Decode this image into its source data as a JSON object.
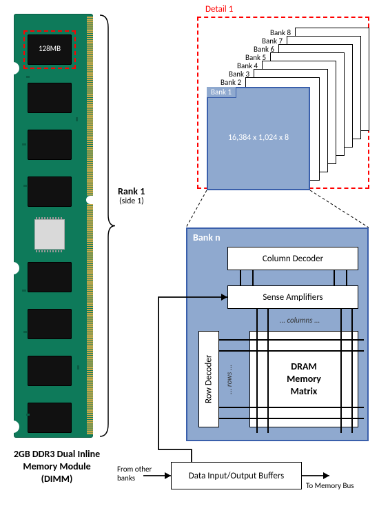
{
  "dimm": {
    "caption_line1": "2GB DDR3 Dual Inline",
    "caption_line2": "Memory Module",
    "caption_line3": "(DIMM)",
    "rank_label": "Rank 1",
    "rank_sub": "(side 1)",
    "chip_highlight_label": "128MB",
    "pcb_color": "#0e7a5a",
    "pcb_border": "#0a5d44",
    "chip_color": "#111111",
    "chip_rows": 8,
    "chip_cols": 2,
    "highlight_dash_color": "#ff0000",
    "contact_color": "#c9a94a",
    "ic_color": "#d9d9d9"
  },
  "detail1": {
    "title": "Detail 1",
    "border_color": "#ff0000",
    "banks": [
      "Bank 8",
      "Bank 7",
      "Bank 6",
      "Bank 5",
      "Bank 4",
      "Bank 3",
      "Bank 2",
      "Bank 1"
    ],
    "bank_fill": "#ffffff",
    "bank_border": "#000000",
    "front_fill": "#8fa9cf",
    "front_border": "#3a5fab",
    "front_text": "16,384 x 1,024 x 8",
    "front_text_color": "#ffffff",
    "bank_label_bg": "#ffffff",
    "label_font_size": 11
  },
  "bank_detail": {
    "title": "Bank n",
    "bg_fill": "#8fa9cf",
    "border_color": "#3a5fab",
    "title_color": "#ffffff",
    "col_decoder": "Column Decoder",
    "sense_amp": "Sense Amplifiers",
    "row_decoder": "Row Decoder",
    "cols_label": "... columns ...",
    "rows_label": "... rows ...",
    "matrix_line1": "DRAM",
    "matrix_line2": "Memory",
    "matrix_line3": "Matrix",
    "block_fill": "#ffffff",
    "block_border": "#000000",
    "buffer_label": "Data Input/Output Buffers",
    "from_banks": "From other\nbanks",
    "to_bus": "To Memory Bus",
    "line_color": "#000000"
  }
}
